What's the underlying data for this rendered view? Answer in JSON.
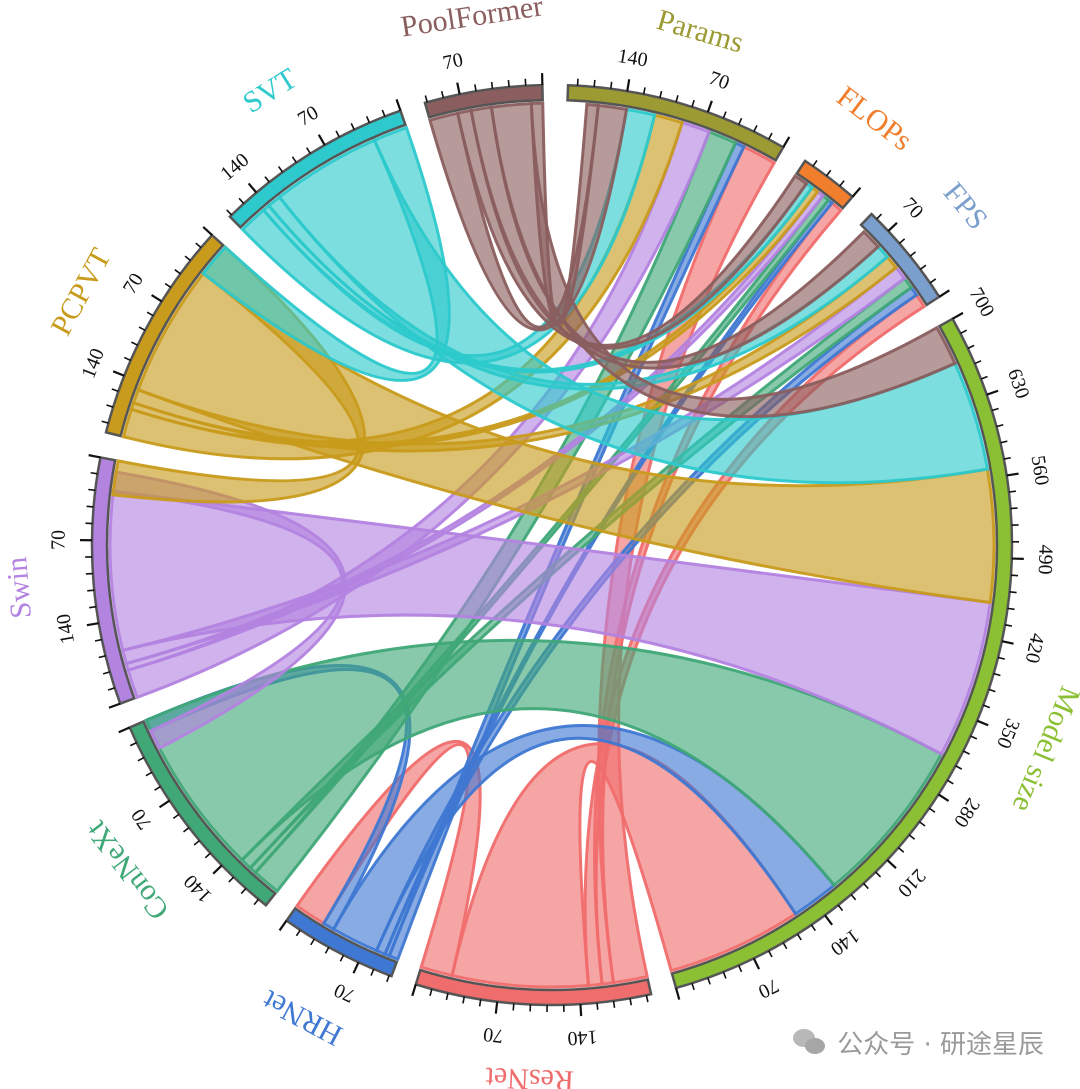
{
  "chart_data": {
    "type": "chord",
    "tick_step": 70,
    "sectors": [
      {
        "name": "Params",
        "value": 190,
        "color": "#9c9a32",
        "ticks": [
          "70",
          "140"
        ]
      },
      {
        "name": "FLOPs",
        "value": 50,
        "color": "#f07e2c",
        "ticks": []
      },
      {
        "name": "FPS",
        "value": 90,
        "color": "#7b9fcc",
        "ticks": [
          "70"
        ]
      },
      {
        "name": "Model size",
        "value": 700,
        "color": "#8bbf34",
        "ticks": [
          "70",
          "140",
          "210",
          "280",
          "350",
          "420",
          "490",
          "560",
          "630",
          "700"
        ]
      },
      {
        "name": "ResNet",
        "value": 200,
        "color": "#f06d6d",
        "ticks": [
          "70",
          "140"
        ]
      },
      {
        "name": "HRNet",
        "value": 100,
        "color": "#3f78d2",
        "ticks": [
          "70"
        ]
      },
      {
        "name": "ConNeXt",
        "value": 190,
        "color": "#40a877",
        "ticks": [
          "70",
          "140"
        ]
      },
      {
        "name": "Swin",
        "value": 210,
        "color": "#b383e0",
        "ticks": [
          "70",
          "140"
        ]
      },
      {
        "name": "PCPVT",
        "value": 190,
        "color": "#c89b1c",
        "ticks": [
          "70",
          "140"
        ]
      },
      {
        "name": "SVT",
        "value": 170,
        "color": "#2dc9cc",
        "ticks": [
          "70",
          "140"
        ]
      },
      {
        "name": "PoolFormer",
        "value": 100,
        "color": "#8a5e5e",
        "ticks": [
          "70"
        ]
      }
    ],
    "links": [
      {
        "source": "ResNet",
        "target": "Params",
        "value": 30
      },
      {
        "source": "ResNet",
        "target": "FLOPs",
        "value": 10
      },
      {
        "source": "ResNet",
        "target": "FPS",
        "value": 12
      },
      {
        "source": "ResNet",
        "target": "Model size",
        "value": 120
      },
      {
        "source": "ResNet",
        "target": "HRNet",
        "value": 28
      },
      {
        "source": "HRNet",
        "target": "Params",
        "value": 8
      },
      {
        "source": "HRNet",
        "target": "FLOPs",
        "value": 4
      },
      {
        "source": "HRNet",
        "target": "FPS",
        "value": 8
      },
      {
        "source": "HRNet",
        "target": "Model size",
        "value": 42
      },
      {
        "source": "HRNet",
        "target": "ConNeXt",
        "value": 10
      },
      {
        "source": "ConNeXt",
        "target": "Params",
        "value": 25
      },
      {
        "source": "ConNeXt",
        "target": "FLOPs",
        "value": 6
      },
      {
        "source": "ConNeXt",
        "target": "FPS",
        "value": 10
      },
      {
        "source": "ConNeXt",
        "target": "Model size",
        "value": 149
      },
      {
        "source": "Swin",
        "target": "Params",
        "value": 25
      },
      {
        "source": "Swin",
        "target": "FLOPs",
        "value": 6
      },
      {
        "source": "Swin",
        "target": "FPS",
        "value": 12
      },
      {
        "source": "Swin",
        "target": "Model size",
        "value": 140
      },
      {
        "source": "Swin",
        "target": "ConNeXt",
        "value": 17
      },
      {
        "source": "PCPVT",
        "target": "Params",
        "value": 25
      },
      {
        "source": "PCPVT",
        "target": "FLOPs",
        "value": 6
      },
      {
        "source": "PCPVT",
        "target": "FPS",
        "value": 12
      },
      {
        "source": "PCPVT",
        "target": "Model size",
        "value": 117
      },
      {
        "source": "PCPVT",
        "target": "Swin",
        "value": 30
      },
      {
        "source": "SVT",
        "target": "Params",
        "value": 25
      },
      {
        "source": "SVT",
        "target": "FLOPs",
        "value": 6
      },
      {
        "source": "SVT",
        "target": "FPS",
        "value": 12
      },
      {
        "source": "SVT",
        "target": "Model size",
        "value": 97
      },
      {
        "source": "SVT",
        "target": "PCPVT",
        "value": 30
      },
      {
        "source": "PoolFormer",
        "target": "Params",
        "value": 25
      },
      {
        "source": "PoolFormer",
        "target": "FLOPs",
        "value": 12
      },
      {
        "source": "PoolFormer",
        "target": "FPS",
        "value": 18
      },
      {
        "source": "PoolFormer",
        "target": "Model size",
        "value": 35
      },
      {
        "source": "PoolFormer",
        "target": "Params",
        "value": 10
      }
    ]
  },
  "watermark": {
    "text": "公众号 · 研途星辰",
    "icon": "wechat-icon"
  }
}
